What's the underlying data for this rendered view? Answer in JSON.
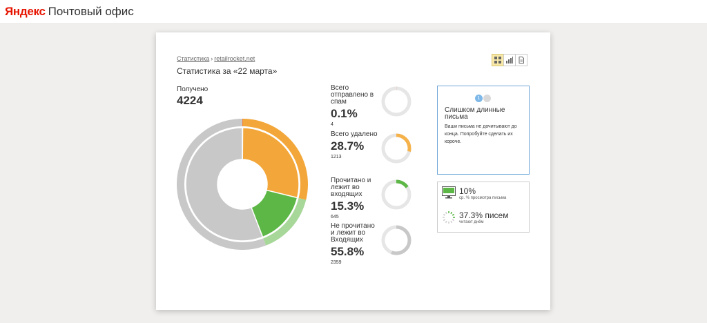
{
  "header": {
    "logo": "Яндекс",
    "service_name": "Почтовый офис"
  },
  "breadcrumb": {
    "root": "Статистика",
    "separator": "›",
    "current": "retailrocket.net"
  },
  "page_title": "Статистика за «22 марта»",
  "view_toggle": {
    "options": [
      "grid-view",
      "bar-chart-view",
      "document-view"
    ],
    "active": "grid-view"
  },
  "received": {
    "label": "Получено",
    "value": "4224"
  },
  "metrics": [
    {
      "label": "Всего отправлено в спам",
      "percent": "0.1%",
      "count": "4",
      "value": 0.1,
      "color": "#f15a24"
    },
    {
      "label": "Всего удалено",
      "percent": "28.7%",
      "count": "1213",
      "value": 28.7,
      "color": "#f6b24a"
    },
    {
      "label": "Прочитано и лежит во входящих",
      "percent": "15.3%",
      "count": "645",
      "value": 15.3,
      "color": "#5db746"
    },
    {
      "label": "Не прочитано и лежит во Входящих",
      "percent": "55.8%",
      "count": "2359",
      "value": 55.8,
      "color": "#c8c8c8"
    }
  ],
  "chart_data": {
    "type": "pie",
    "categories": [
      "Всего отправлено в спам",
      "Всего удалено",
      "Прочитано и лежит во входящих",
      "Не прочитано и лежит во Входящих"
    ],
    "values": [
      0.1,
      28.7,
      15.3,
      55.8
    ],
    "colors": [
      "#f15a24",
      "#f3a73a",
      "#5db746",
      "#c8c8c8"
    ],
    "outer_ring_color": "#a8d79a"
  },
  "tip": {
    "pages": [
      "1",
      ""
    ],
    "active_page": 1,
    "title": "Слишком длинные письма",
    "text": "Ваши письма не дочитывают до конца. Попробуйте сделать их короче."
  },
  "stats": [
    {
      "value": "10%",
      "caption": "ср. % просмотра письма",
      "icon": "monitor-icon"
    },
    {
      "value": "37.3% писем",
      "caption": "читают днём",
      "icon": "sun-dial-icon",
      "fraction": 0.373
    }
  ]
}
